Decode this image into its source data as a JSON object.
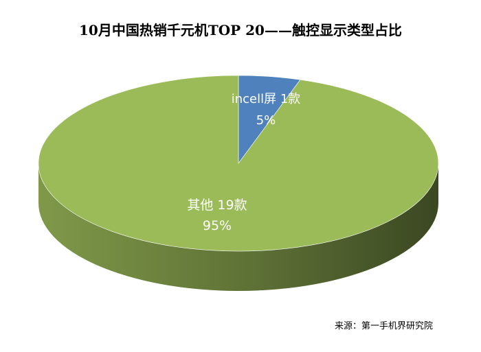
{
  "chart_data": {
    "type": "pie",
    "title": "10月中国热销千元机TOP 20——触控显示类型占比",
    "categories": [
      "incell屏 1款",
      "其他 19款"
    ],
    "values": [
      5,
      95
    ],
    "value_labels": [
      "5%",
      "95%"
    ],
    "units": "%",
    "colors": [
      "#4f81bd",
      "#9bbb59"
    ],
    "legend": "none",
    "style": "3d-tilted"
  },
  "source": "来源：第一手机界研究院"
}
